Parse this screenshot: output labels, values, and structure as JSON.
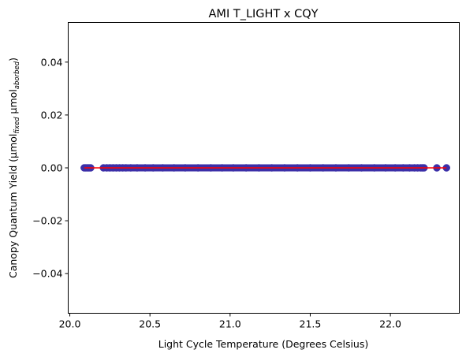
{
  "chart_data": {
    "type": "scatter",
    "title": "AMI T_LIGHT x CQY",
    "xlabel": "Light Cycle Temperature (Degrees Celsius)",
    "ylabel": {
      "base": "Canopy Quantum Yield (μmol",
      "sub1": "fixed",
      "mid": " μmol",
      "sub2": "aborbed",
      "end": ")"
    },
    "xlim": [
      19.99,
      22.43
    ],
    "ylim": [
      -0.055,
      0.055
    ],
    "xticks": [
      {
        "value": 20.0,
        "label": "20.0"
      },
      {
        "value": 20.5,
        "label": "20.5"
      },
      {
        "value": 21.0,
        "label": "21.0"
      },
      {
        "value": 21.5,
        "label": "21.5"
      },
      {
        "value": 22.0,
        "label": "22.0"
      }
    ],
    "yticks": [
      {
        "value": 0.04,
        "label": "0.04"
      },
      {
        "value": 0.02,
        "label": "0.02"
      },
      {
        "value": 0.0,
        "label": "0.00"
      },
      {
        "value": -0.02,
        "label": "−0.02"
      },
      {
        "value": -0.04,
        "label": "−0.04"
      }
    ],
    "grid": false,
    "points": {
      "y": 0.0,
      "x": [
        20.09,
        20.1,
        20.11,
        20.12,
        20.13,
        20.21,
        20.23,
        20.25,
        20.27,
        20.29,
        20.31,
        20.33,
        20.35,
        20.38,
        20.42,
        20.47,
        20.52,
        20.58,
        20.65,
        20.72,
        20.8,
        20.88,
        20.95,
        21.02,
        21.1,
        21.18,
        21.26,
        21.34,
        21.42,
        21.5,
        21.58,
        21.66,
        21.74,
        21.82,
        21.9,
        21.97,
        22.03,
        22.08,
        22.12,
        22.15,
        22.17,
        22.19,
        22.2,
        22.21,
        22.29,
        22.35
      ],
      "color": "#3b2fa8"
    },
    "fit_line": {
      "x": [
        20.09,
        22.35
      ],
      "y": [
        0.0,
        0.0
      ],
      "color": "#ff0000"
    }
  }
}
